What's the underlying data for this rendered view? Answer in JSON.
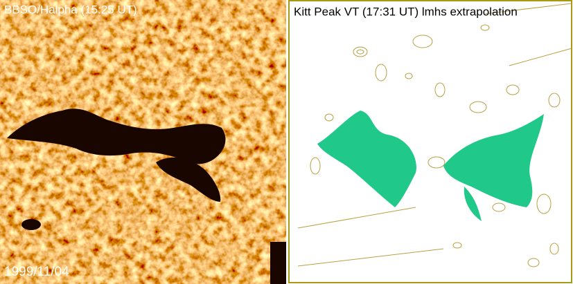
{
  "left_panel": {
    "label": "BBSO/Halpha (15:25 UT)",
    "date": "1999/11/04"
  },
  "right_panel": {
    "label": "Kitt Peak VT (17:31 UT) lmhs extrapolation"
  }
}
